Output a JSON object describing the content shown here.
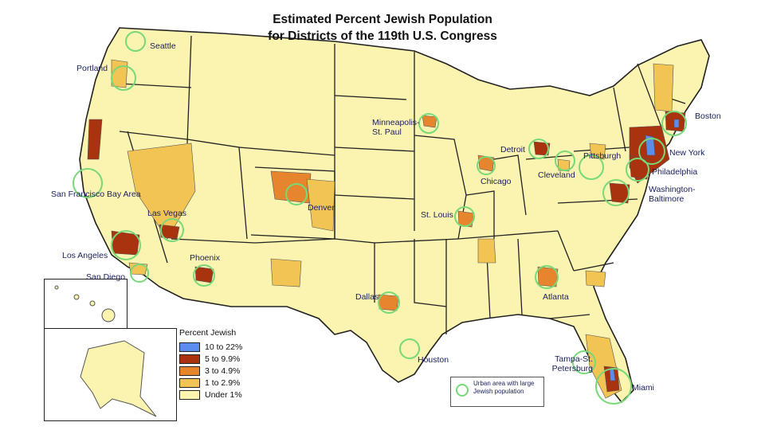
{
  "title_line1": "Estimated Percent Jewish Population",
  "title_line2": "for Districts of the 119th U.S. Congress",
  "colors": {
    "c10_22": "#5b8def",
    "c5_9": "#a9320f",
    "c3_4": "#e6852d",
    "c1_2": "#f2c454",
    "under1": "#fbf3b0",
    "urban_circle": "#77d977",
    "border": "#222222"
  },
  "legend": {
    "title": "Percent Jewish",
    "items": [
      {
        "label": "10 to 22%",
        "color": "#5b8def"
      },
      {
        "label": "5 to 9.9%",
        "color": "#a9320f"
      },
      {
        "label": "3 to 4.9%",
        "color": "#e6852d"
      },
      {
        "label": "1 to 2.9%",
        "color": "#f2c454"
      },
      {
        "label": "Under 1%",
        "color": "#fbf3b0"
      }
    ]
  },
  "urban_key": {
    "text": "Urban area with large Jewish population"
  },
  "cities": [
    {
      "name": "Seattle"
    },
    {
      "name": "Portland"
    },
    {
      "name": "San Francisco Bay Area"
    },
    {
      "name": "Las Vegas"
    },
    {
      "name": "Los Angeles"
    },
    {
      "name": "San Diego"
    },
    {
      "name": "Phoenix"
    },
    {
      "name": "Denver"
    },
    {
      "name": "Minneapolis-St. Paul"
    },
    {
      "name": "Chicago"
    },
    {
      "name": "St. Louis"
    },
    {
      "name": "Dallas"
    },
    {
      "name": "Houston"
    },
    {
      "name": "Atlanta"
    },
    {
      "name": "Detroit"
    },
    {
      "name": "Cleveland"
    },
    {
      "name": "Pittsburgh"
    },
    {
      "name": "Boston"
    },
    {
      "name": "New York"
    },
    {
      "name": "Philadelphia"
    },
    {
      "name": "Washington-Baltimore"
    },
    {
      "name": "Tampa-St. Petersburg"
    },
    {
      "name": "Miami"
    }
  ]
}
